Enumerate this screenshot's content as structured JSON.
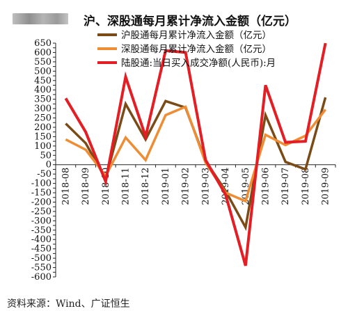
{
  "header": {
    "title": "沪、深股通每月累计净流入金额（亿元）"
  },
  "footer": {
    "source": "资料来源：Wind、广证恒生"
  },
  "chart_data": {
    "type": "line",
    "title": "沪、深股通每月累计净流入金额（亿元）",
    "xlabel": "",
    "ylabel": "",
    "ylim": [
      -600,
      650
    ],
    "ytick_step": 25,
    "categories": [
      "2018-08",
      "2018-09",
      "2018-10",
      "2018-11",
      "2018-12",
      "2019-01",
      "2019-02",
      "2019-03",
      "2019-04",
      "2019-05",
      "2019-06",
      "2019-07",
      "2019-08",
      "2019-09"
    ],
    "legend_position": "top-right",
    "grid": false,
    "series": [
      {
        "name": "沪股通每月累计净流入金额（亿元）",
        "color": "#7a4b16",
        "values": [
          220,
          115,
          -75,
          325,
          135,
          340,
          305,
          20,
          -140,
          -335,
          265,
          15,
          -25,
          360
        ]
      },
      {
        "name": "深股通每月累计净流入金额（亿元）",
        "color": "#ef8d35",
        "values": [
          135,
          80,
          -60,
          145,
          25,
          265,
          310,
          10,
          -150,
          -195,
          160,
          105,
          155,
          295
        ]
      },
      {
        "name": "陆股通:当日买入成交净额(人民币):月",
        "color": "#e31e24",
        "values": [
          355,
          175,
          -90,
          470,
          150,
          610,
          600,
          25,
          -160,
          -540,
          425,
          120,
          125,
          650
        ]
      }
    ]
  }
}
